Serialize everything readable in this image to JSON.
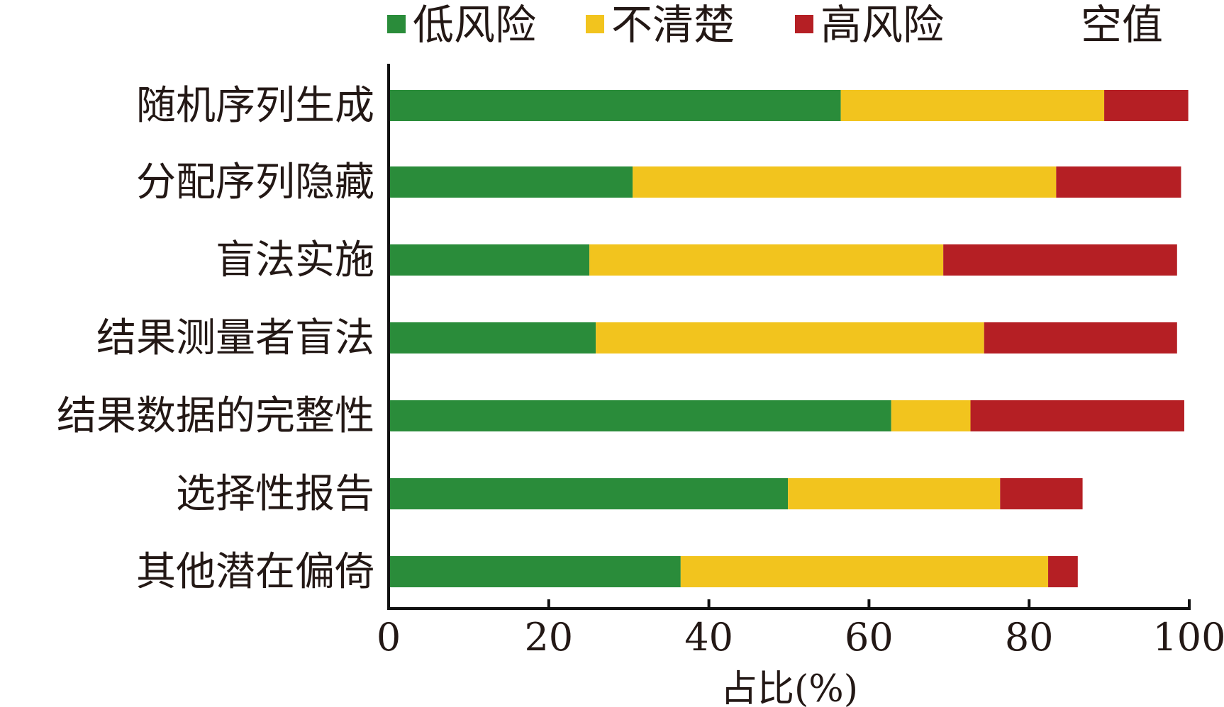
{
  "chart_data": {
    "type": "bar",
    "orientation": "horizontal",
    "stacked": true,
    "categories": [
      "随机序列生成",
      "分配序列隐藏",
      "盲法实施",
      "结果测量者盲法",
      "结果数据的完整性",
      "选择性报告",
      "其他潜在偏倚"
    ],
    "series": [
      {
        "name": "低风险",
        "color": "#2a8c3a",
        "values": [
          56.3,
          30.3,
          24.9,
          25.7,
          62.6,
          49.7,
          36.3
        ]
      },
      {
        "name": "不清楚",
        "color": "#f2c41e",
        "values": [
          32.9,
          52.9,
          44.2,
          48.5,
          9.9,
          26.5,
          45.9
        ]
      },
      {
        "name": "高风险",
        "color": "#b51f24",
        "values": [
          10.5,
          15.6,
          29.2,
          24.1,
          26.7,
          10.3,
          3.7
        ]
      },
      {
        "name": "空值",
        "color": "#ffffff",
        "values": [
          0.3,
          1.2,
          1.7,
          1.7,
          0.8,
          13.5,
          14.1
        ]
      }
    ],
    "xlabel": "占比(%)",
    "ylabel": "",
    "xlim": [
      0,
      100
    ],
    "xticks": [
      "0",
      "20",
      "40",
      "60",
      "80",
      "100"
    ],
    "legend_position": "top",
    "grid": false
  }
}
